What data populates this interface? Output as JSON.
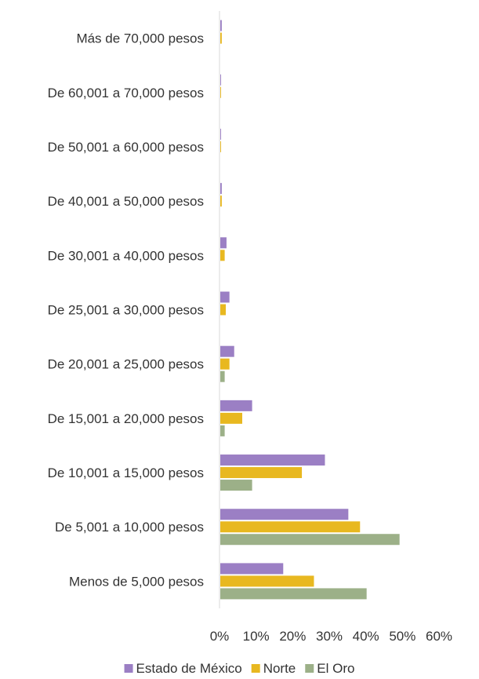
{
  "chart_data": {
    "type": "bar",
    "orientation": "horizontal",
    "categories": [
      "Más de 70,000 pesos",
      "De 60,001 a 70,000 pesos",
      "De 50,001 a 60,000 pesos",
      "De 40,001 a 50,000 pesos",
      "De 30,001 a 40,000 pesos",
      "De 25,001 a 30,000 pesos",
      "De 20,001 a 25,000 pesos",
      "De 15,001 a 20,000 pesos",
      "De 10,001 a 15,000 pesos",
      "De 5,001 a 10,000 pesos",
      "Menos de 5,000 pesos"
    ],
    "series": [
      {
        "name": "Estado de México",
        "color": "#9b7fc4",
        "values": [
          0.4,
          0.2,
          0.2,
          0.4,
          1.7,
          2.5,
          3.8,
          8.7,
          28.6,
          35.0,
          17.2
        ]
      },
      {
        "name": "Norte",
        "color": "#e8b820",
        "values": [
          0.4,
          0.2,
          0.2,
          0.4,
          1.2,
          1.5,
          2.5,
          6.0,
          22.3,
          38.2,
          25.6
        ]
      },
      {
        "name": "El Oro",
        "color": "#9cb088",
        "values": [
          0,
          0,
          0,
          0,
          0,
          0,
          1.2,
          1.2,
          8.7,
          49.0,
          40.0
        ]
      }
    ],
    "xlim": [
      0,
      60
    ],
    "xticks": [
      "0%",
      "10%",
      "20%",
      "30%",
      "40%",
      "50%",
      "60%"
    ],
    "grid": false,
    "legend_position": "bottom"
  }
}
